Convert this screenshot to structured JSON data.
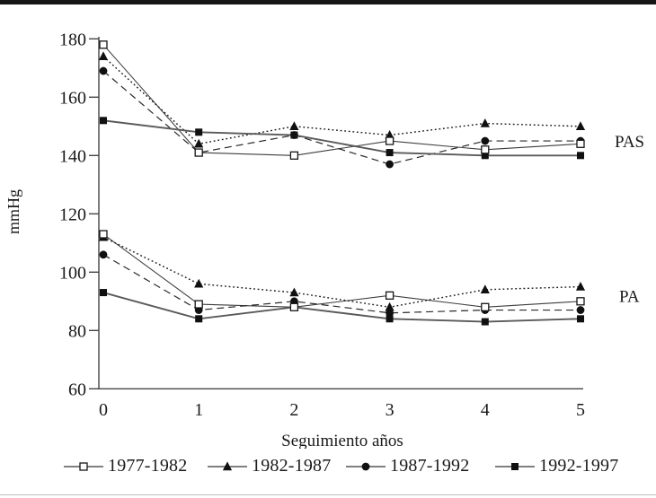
{
  "figure_type": "line-chart-figure",
  "colors": {
    "ink": "#1a1a1a",
    "axis": "#454545",
    "line_open_square": "#3c3c3c",
    "line_triangle": "#161616",
    "line_circle": "#2a2a2a",
    "line_filled_square": "#5a5a5a",
    "marker_fill": "#101010",
    "top_rule": "#161616",
    "bottom_rule": "#b9bcc0"
  },
  "chart_data": {
    "type": "line",
    "title": "",
    "xlabel": "Seguimiento años",
    "ylabel": "mmHg",
    "x": [
      0,
      1,
      2,
      3,
      4,
      5
    ],
    "x_ticks": [
      "0",
      "1",
      "2",
      "3",
      "4",
      "5"
    ],
    "y_ticks": [
      180,
      160,
      140,
      120,
      100,
      80,
      60
    ],
    "ylim": [
      60,
      180
    ],
    "grid": false,
    "legend_position": "bottom",
    "series": [
      {
        "name": "1977-1982",
        "group": "PAS",
        "marker": "open-square",
        "line": "solid",
        "values": [
          178,
          141,
          140,
          145,
          142,
          144
        ]
      },
      {
        "name": "1982-1987",
        "group": "PAS",
        "marker": "filled-triangle",
        "line": "dotted",
        "values": [
          174,
          144,
          150,
          147,
          151,
          150
        ]
      },
      {
        "name": "1987-1992",
        "group": "PAS",
        "marker": "filled-circle",
        "line": "dashed",
        "values": [
          169,
          141,
          147,
          137,
          145,
          145
        ]
      },
      {
        "name": "1992-1997",
        "group": "PAS",
        "marker": "filled-square",
        "line": "solid",
        "values": [
          152,
          148,
          147,
          141,
          140,
          140
        ]
      },
      {
        "name": "1977-1982",
        "group": "PA",
        "marker": "open-square",
        "line": "solid",
        "values": [
          113,
          89,
          88,
          92,
          88,
          90
        ]
      },
      {
        "name": "1982-1987",
        "group": "PA",
        "marker": "filled-triangle",
        "line": "dotted",
        "values": [
          112,
          96,
          93,
          88,
          94,
          95
        ]
      },
      {
        "name": "1987-1992",
        "group": "PA",
        "marker": "filled-circle",
        "line": "dashed",
        "values": [
          106,
          87,
          90,
          86,
          87,
          87
        ]
      },
      {
        "name": "1992-1997",
        "group": "PA",
        "marker": "filled-square",
        "line": "solid",
        "values": [
          93,
          84,
          88,
          84,
          83,
          84
        ]
      }
    ],
    "right_labels": [
      {
        "text": "PAS",
        "at_value": 145
      },
      {
        "text": "PA",
        "at_value": 92
      }
    ],
    "legend": [
      {
        "label": "1977-1982",
        "marker": "open-square"
      },
      {
        "label": "1982-1987",
        "marker": "filled-triangle"
      },
      {
        "label": "1987-1992",
        "marker": "filled-circle"
      },
      {
        "label": "1992-1997",
        "marker": "filled-square"
      }
    ]
  }
}
